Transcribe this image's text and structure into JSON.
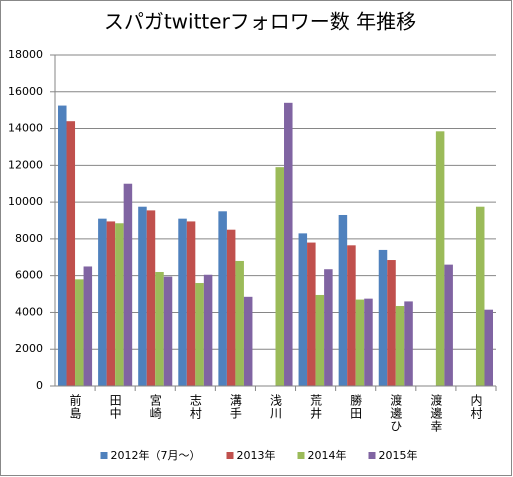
{
  "chart_data": {
    "type": "bar",
    "title": "スパガtwitterフォロワー数 年推移",
    "categories": [
      "前島",
      "田中",
      "宮崎",
      "志村",
      "溝手",
      "浅川",
      "荒井",
      "勝田",
      "渡邊ひ",
      "渡邊幸",
      "内村"
    ],
    "series": [
      {
        "name": "2012年（7月～）",
        "color": "#4f81bd",
        "values": [
          15250,
          9100,
          9750,
          9100,
          9500,
          null,
          8300,
          9300,
          7400,
          null,
          null
        ]
      },
      {
        "name": "2013年",
        "color": "#c0504d",
        "values": [
          14400,
          8950,
          9550,
          8950,
          8500,
          null,
          7800,
          7650,
          6850,
          null,
          null
        ]
      },
      {
        "name": "2014年",
        "color": "#9bbb59",
        "values": [
          5800,
          8850,
          6200,
          5600,
          6800,
          11900,
          4950,
          4700,
          4350,
          13850,
          9750
        ]
      },
      {
        "name": "2015年",
        "color": "#8064a2",
        "values": [
          6500,
          11000,
          5950,
          6050,
          4850,
          15400,
          6350,
          4750,
          4600,
          6600,
          4150
        ]
      }
    ],
    "ylim": [
      0,
      18000
    ],
    "yticks": [
      0,
      2000,
      4000,
      6000,
      8000,
      10000,
      12000,
      14000,
      16000,
      18000
    ],
    "grid": true,
    "legend": "bottom"
  }
}
